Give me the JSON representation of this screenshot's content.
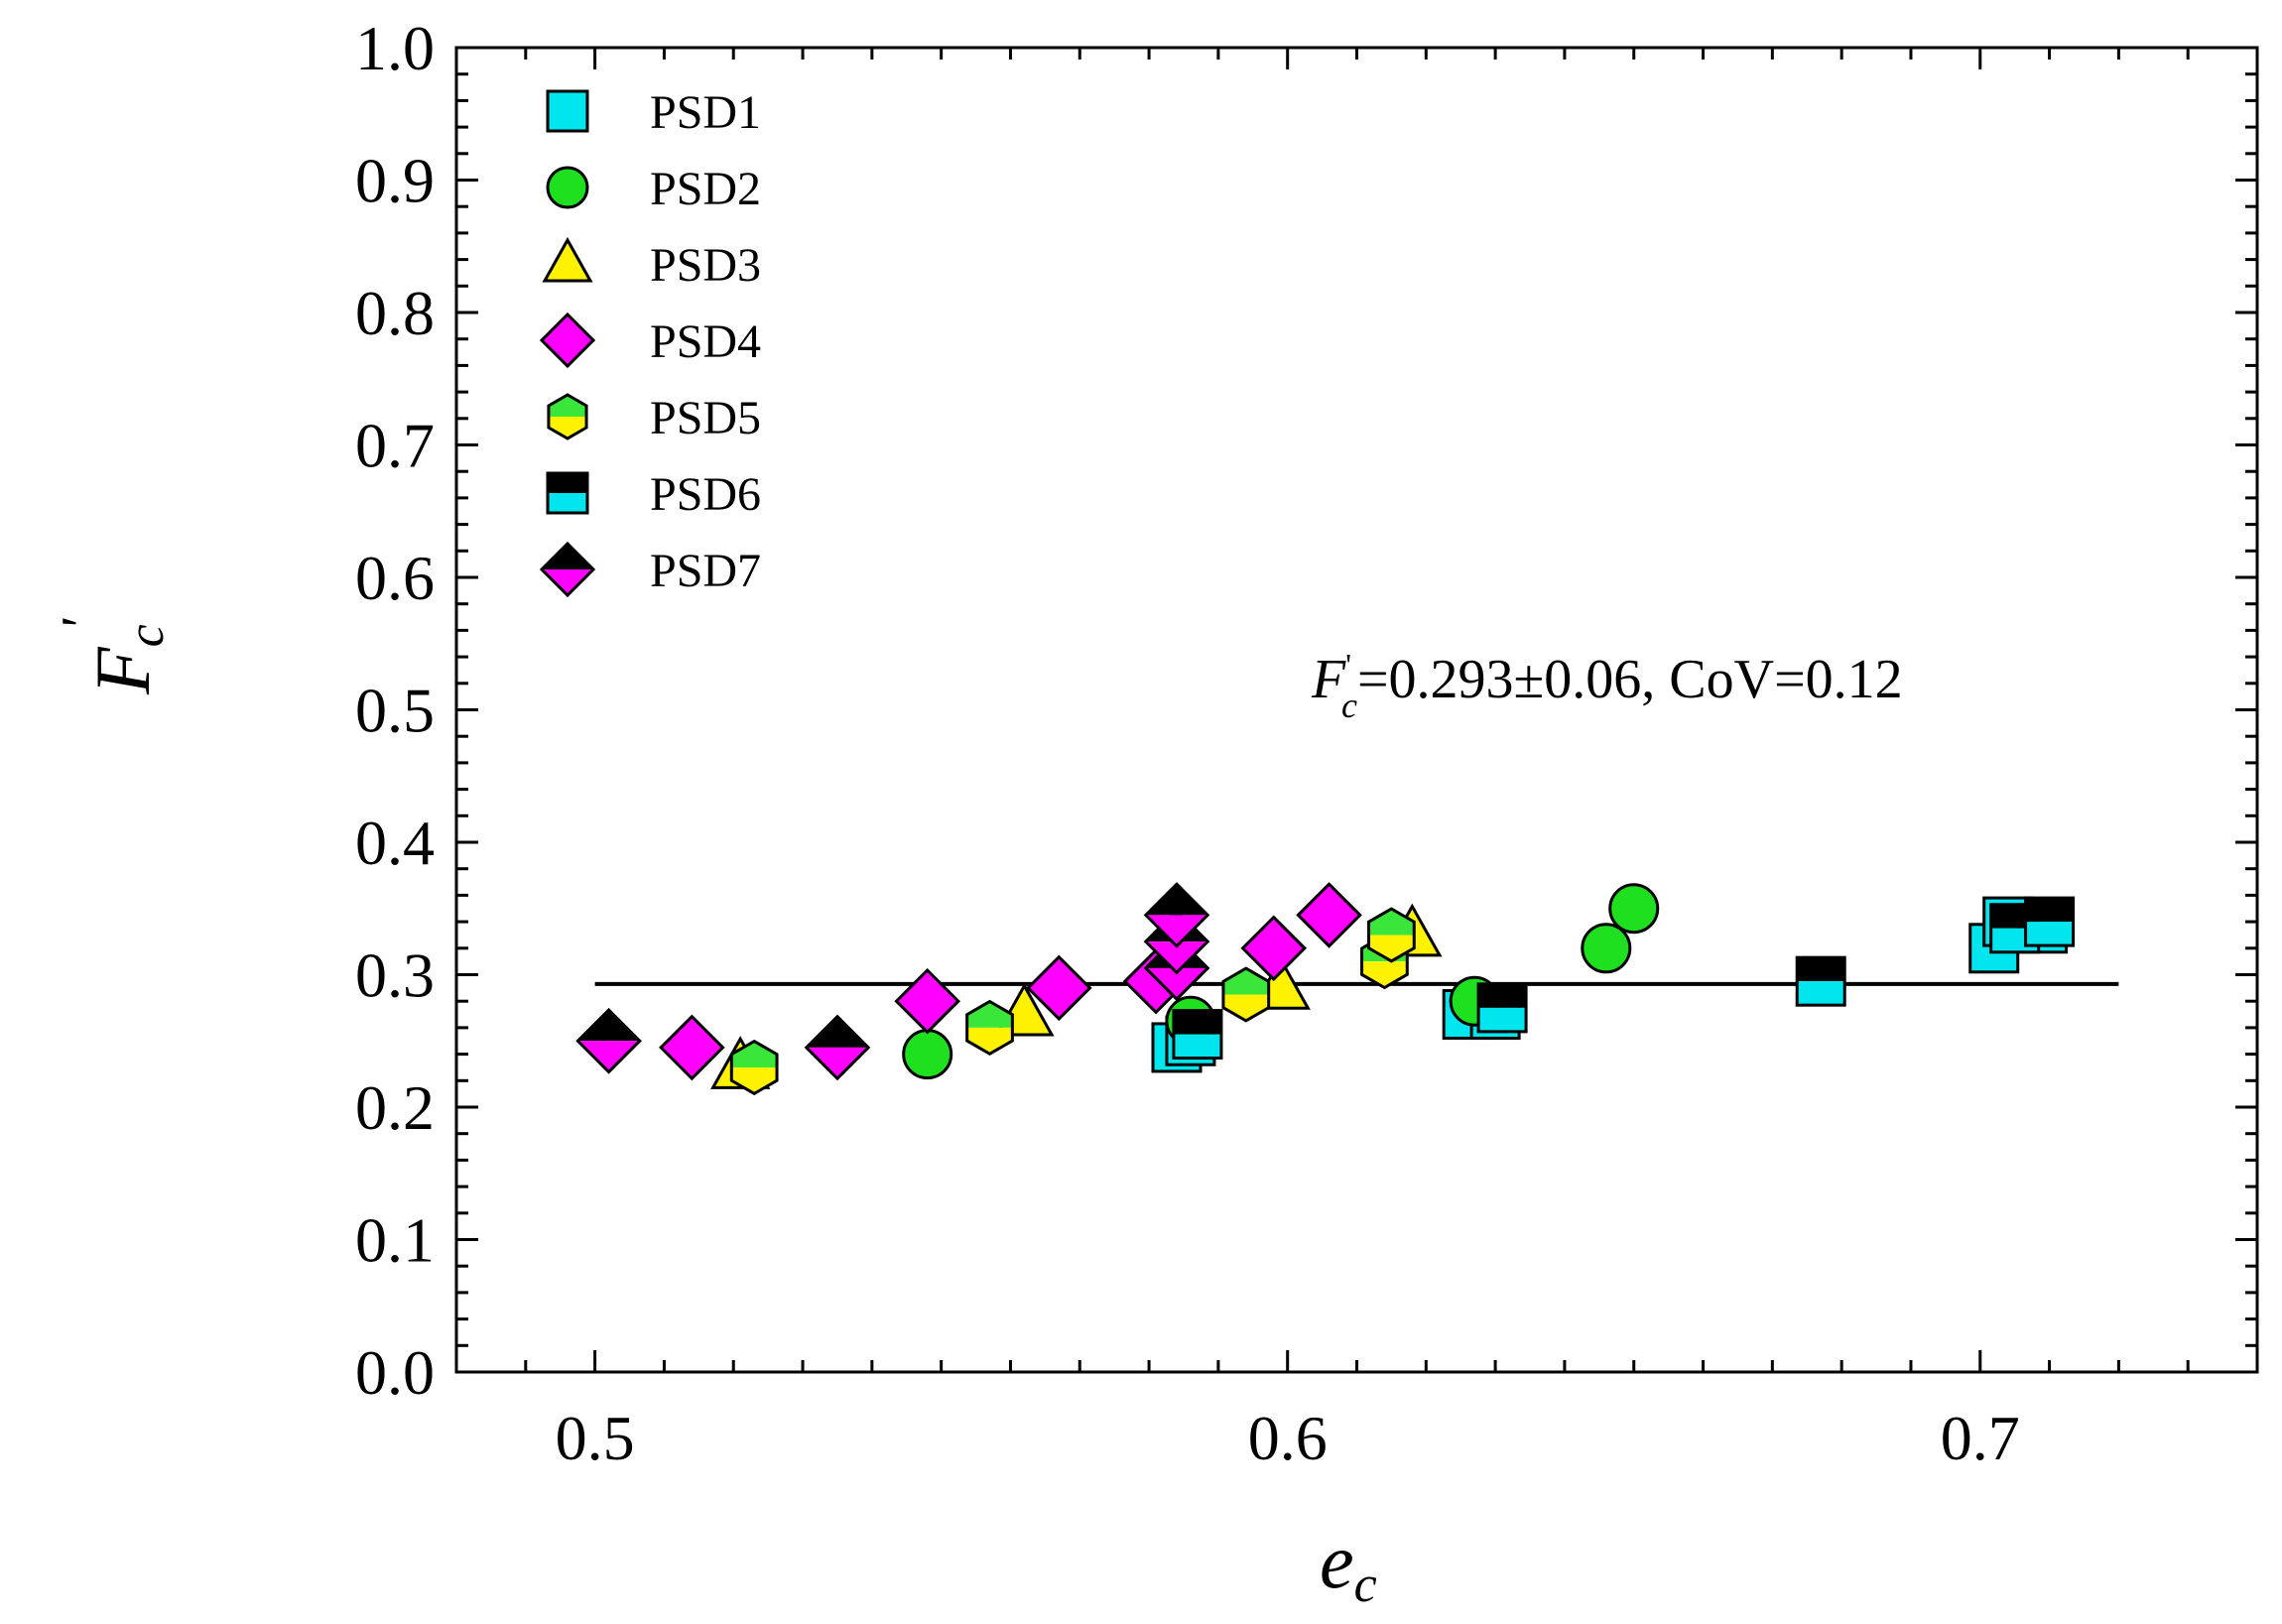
{
  "chart_data": {
    "type": "scatter",
    "title": "",
    "xlabel": {
      "base": "e",
      "sub": "c"
    },
    "ylabel": {
      "base": "F",
      "sub": "c",
      "prime": "'"
    },
    "xlim": [
      0.48,
      0.74
    ],
    "ylim": [
      0.0,
      1.0
    ],
    "xticks": [
      0.5,
      0.6,
      0.7
    ],
    "xtick_labels": [
      "0.5",
      "0.6",
      "0.7"
    ],
    "yticks": [
      0.0,
      0.1,
      0.2,
      0.3,
      0.4,
      0.5,
      0.6,
      0.7,
      0.8,
      0.9,
      1.0
    ],
    "ytick_labels": [
      "0.0",
      "0.1",
      "0.2",
      "0.3",
      "0.4",
      "0.5",
      "0.6",
      "0.7",
      "0.8",
      "0.9",
      "1.0"
    ],
    "grid": false,
    "legend_position": "top-left",
    "series": [
      {
        "name": "PSD1",
        "marker": "square",
        "fill_top": "#00E5EE",
        "fill_bottom": "#00E5EE",
        "x": [
          0.584,
          0.586,
          0.626,
          0.63,
          0.702,
          0.704,
          0.709
        ],
        "y": [
          0.245,
          0.25,
          0.27,
          0.27,
          0.32,
          0.34,
          0.335
        ]
      },
      {
        "name": "PSD2",
        "marker": "circle",
        "fill_top": "#1EE01E",
        "fill_bottom": "#1EE01E",
        "x": [
          0.548,
          0.586,
          0.627,
          0.646,
          0.65
        ],
        "y": [
          0.24,
          0.265,
          0.28,
          0.32,
          0.35
        ]
      },
      {
        "name": "PSD3",
        "marker": "triangle",
        "fill_top": "#FFF200",
        "fill_bottom": "#FFF200",
        "x": [
          0.521,
          0.562,
          0.599,
          0.618
        ],
        "y": [
          0.23,
          0.27,
          0.29,
          0.33
        ]
      },
      {
        "name": "PSD4",
        "marker": "diamond",
        "fill_top": "#FF00FF",
        "fill_bottom": "#FF00FF",
        "x": [
          0.514,
          0.548,
          0.567,
          0.581,
          0.584,
          0.598,
          0.606
        ],
        "y": [
          0.245,
          0.28,
          0.29,
          0.295,
          0.305,
          0.32,
          0.345
        ]
      },
      {
        "name": "PSD5",
        "marker": "hexagon",
        "fill_top": "#39E639",
        "fill_bottom": "#FFF200",
        "x": [
          0.523,
          0.557,
          0.594,
          0.614,
          0.615
        ],
        "y": [
          0.23,
          0.26,
          0.285,
          0.31,
          0.33
        ]
      },
      {
        "name": "PSD6",
        "marker": "square",
        "fill_top": "#000000",
        "fill_bottom": "#00E5EE",
        "x": [
          0.587,
          0.631,
          0.677,
          0.705,
          0.71
        ],
        "y": [
          0.255,
          0.275,
          0.295,
          0.335,
          0.34
        ]
      },
      {
        "name": "PSD7",
        "marker": "diamond",
        "fill_top": "#000000",
        "fill_bottom": "#FF00FF",
        "x": [
          0.502,
          0.535,
          0.584,
          0.584,
          0.584
        ],
        "y": [
          0.25,
          0.245,
          0.305,
          0.325,
          0.345
        ]
      }
    ],
    "reference_line": {
      "y": 0.293,
      "x_range": [
        0.5,
        0.72
      ]
    },
    "annotation": {
      "lhs": "F",
      "sub": "c",
      "prime": "'",
      "rhs": "=0.293±0.06, CoV=0.12"
    }
  }
}
